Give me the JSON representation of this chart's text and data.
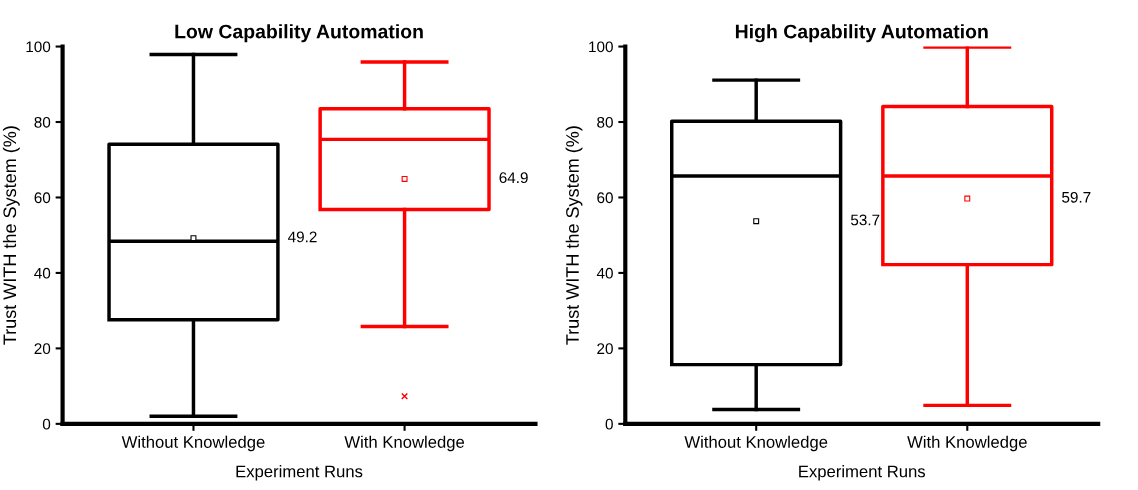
{
  "chart_data": [
    {
      "type": "box",
      "title": "Low Capability Automation",
      "xlabel": "Experiment Runs",
      "ylabel": "Trust WITH the System (%)",
      "categories": [
        "Without Knowledge",
        "With Knowledge"
      ],
      "colors": [
        "#000000",
        "#ff0000"
      ],
      "boxes": [
        {
          "low": 2.0,
          "q1": 27.6,
          "median": 48.4,
          "q3": 74.1,
          "high": 97.9,
          "mean": 49.2
        },
        {
          "low": 25.8,
          "q1": 56.8,
          "median": 75.4,
          "q3": 83.5,
          "high": 95.9,
          "mean": 64.9,
          "outliers": [
            7.3
          ]
        }
      ],
      "annotations": [
        "49.2",
        "64.9"
      ],
      "ylim": [
        0,
        100
      ],
      "yticks": [
        0,
        20,
        40,
        60,
        80,
        100
      ],
      "grid": false
    },
    {
      "type": "box",
      "title": "High Capability Automation",
      "xlabel": "Experiment Runs",
      "ylabel": "Trust WITH the System (%)",
      "categories": [
        "Without Knowledge",
        "With Knowledge"
      ],
      "colors": [
        "#000000",
        "#ff0000"
      ],
      "boxes": [
        {
          "low": 3.8,
          "q1": 15.7,
          "median": 65.7,
          "q3": 80.2,
          "high": 91.1,
          "mean": 53.7
        },
        {
          "low": 4.9,
          "q1": 42.2,
          "median": 65.7,
          "q3": 84.1,
          "high": 99.9,
          "mean": 59.7
        }
      ],
      "annotations": [
        "53.7",
        "59.7"
      ],
      "ylim": [
        0,
        100
      ],
      "yticks": [
        0,
        20,
        40,
        60,
        80,
        100
      ],
      "grid": false
    }
  ]
}
